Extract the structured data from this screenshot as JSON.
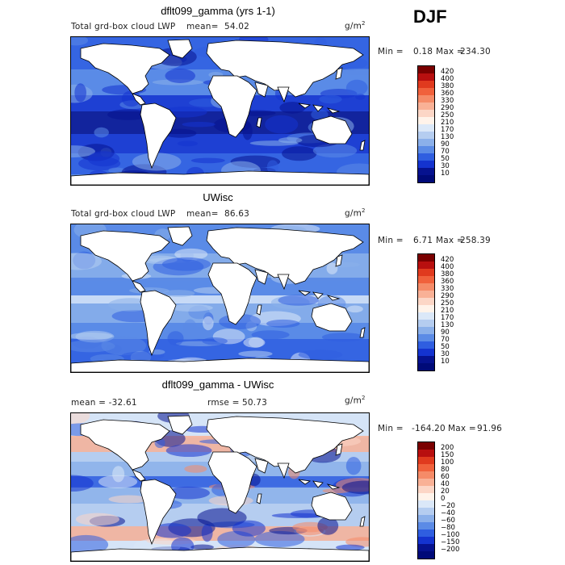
{
  "season": "DJF",
  "units": "g/m",
  "units_exp": "2",
  "panels": [
    {
      "title": "dflt099_gamma (yrs 1-1)",
      "left_label": "Total grd-box cloud LWP",
      "stat_label": "mean=",
      "stat_value": "54.02",
      "min_label": "Min =",
      "min_value": "0.18",
      "max_label": "Max =",
      "max_value": "234.30",
      "colorbar_labels": [
        "420",
        "400",
        "380",
        "360",
        "330",
        "290",
        "250",
        "210",
        "170",
        "130",
        "90",
        "70",
        "50",
        "30",
        "10"
      ],
      "colorbar_colors": [
        "#7a0000",
        "#b80f0f",
        "#e03a1e",
        "#f0613c",
        "#f58b68",
        "#f9b196",
        "#fcd6c6",
        "#fff3ea",
        "#dbe8f8",
        "#b5cdf0",
        "#8bb0ea",
        "#5b8be6",
        "#2f5ee0",
        "#1433cf",
        "#06128f",
        "#000a78"
      ],
      "mean_value": 54.02
    },
    {
      "title": "UWisc",
      "left_label": "Total grd-box cloud LWP",
      "stat_label": "mean=",
      "stat_value": "86.63",
      "min_label": "Min =",
      "min_value": "6.71",
      "max_label": "Max =",
      "max_value": "258.39",
      "colorbar_labels": [
        "420",
        "400",
        "380",
        "360",
        "330",
        "290",
        "250",
        "210",
        "170",
        "130",
        "90",
        "70",
        "50",
        "30",
        "10"
      ],
      "colorbar_colors": [
        "#7a0000",
        "#b80f0f",
        "#e03a1e",
        "#f0613c",
        "#f58b68",
        "#f9b196",
        "#fcd6c6",
        "#fff3ea",
        "#dbe8f8",
        "#b5cdf0",
        "#8bb0ea",
        "#5b8be6",
        "#2f5ee0",
        "#1433cf",
        "#06128f",
        "#000a78"
      ],
      "mean_value": 86.63
    },
    {
      "title": "dflt099_gamma - UWisc",
      "left_label": "mean = -32.61",
      "stat_label": "rmse =",
      "stat_value": "50.73",
      "min_label": "Min =",
      "min_value": "-164.20",
      "max_label": "Max =",
      "max_value": "91.96",
      "colorbar_labels": [
        "200",
        "150",
        "100",
        "80",
        "60",
        "40",
        "20",
        "0",
        "−20",
        "−40",
        "−60",
        "−80",
        "−100",
        "−150",
        "−200"
      ],
      "colorbar_colors": [
        "#7a0000",
        "#b80f0f",
        "#e03a1e",
        "#f0613c",
        "#f58b68",
        "#f9b196",
        "#fcd6c6",
        "#fff3ea",
        "#dbe8f8",
        "#b5cdf0",
        "#8bb0ea",
        "#5b8be6",
        "#2f5ee0",
        "#1433cf",
        "#06128f",
        "#000a78"
      ],
      "mean_value": -32.61
    }
  ]
}
